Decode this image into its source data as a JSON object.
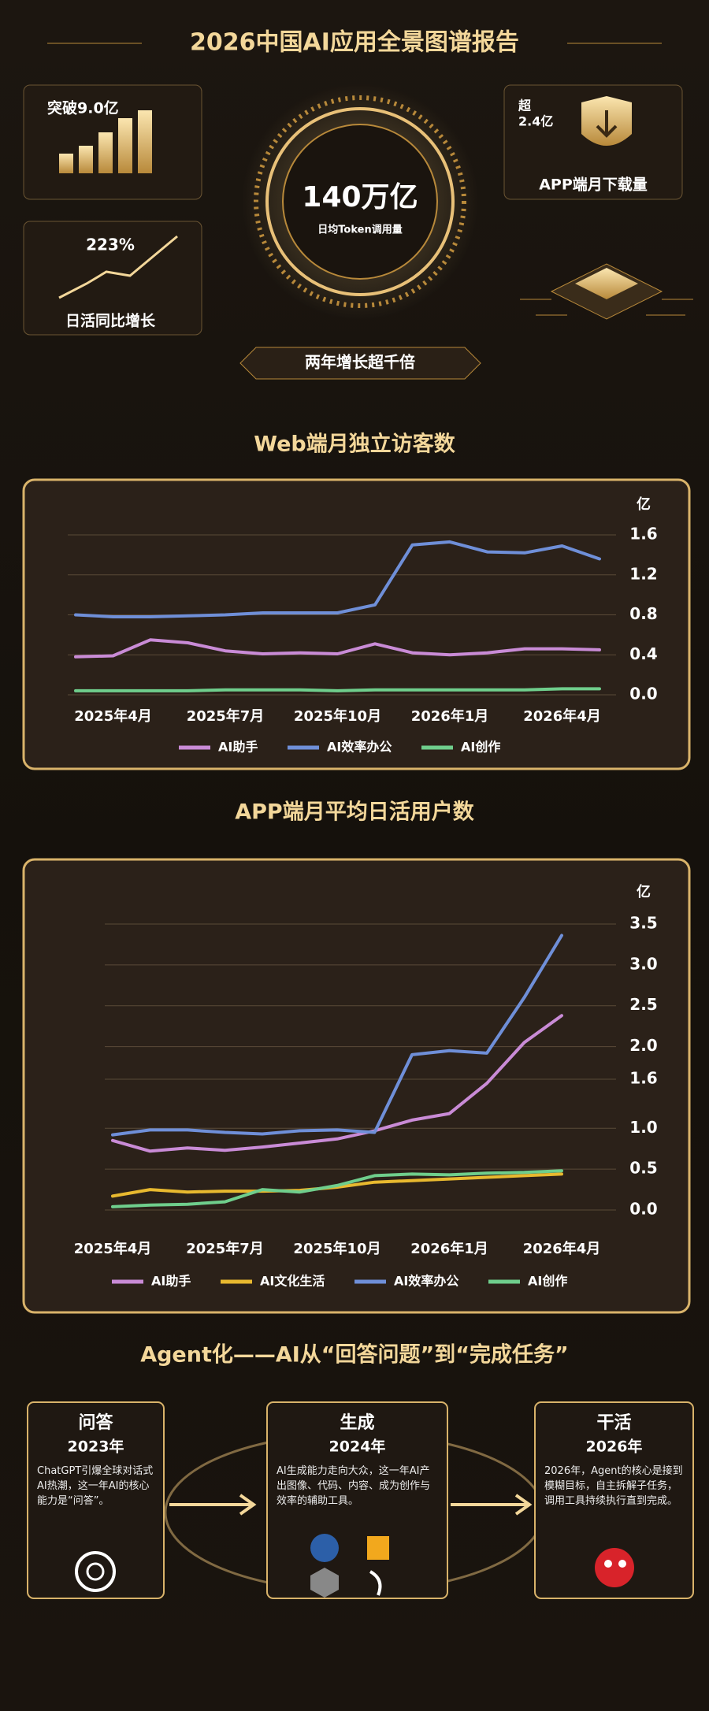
{
  "header": {
    "title": "2026中国AI应用全景图谱报告"
  },
  "stats": {
    "web_users": "突破9.0亿",
    "app_downloads_prefix": "超",
    "app_downloads": "2.4亿",
    "app_downloads_label": "APP端月下载量",
    "token": "140万亿",
    "token_label": "日均Token调用量",
    "dau_growth": "223%",
    "dau_growth_label": "日活同比增长",
    "growth_banner": "两年增长超千倍"
  },
  "chart_data": [
    {
      "type": "line",
      "title": "Web端月独立访客数",
      "y_label": "亿",
      "categories": [
        null,
        "2025年4月",
        null,
        null,
        "2025年7月",
        null,
        null,
        "2025年10月",
        null,
        null,
        "2026年1月",
        null,
        null,
        "2026年4月",
        null
      ],
      "ylim": [
        0,
        1.6
      ],
      "yticks": [
        {
          "value": 0,
          "label": "0.0"
        },
        0.4,
        0.8,
        1.2,
        1.6
      ],
      "grid": true,
      "series": [
        {
          "name": "AI助手",
          "color": "#c98bd6",
          "values": [
            0.38,
            0.39,
            0.55,
            0.52,
            0.44,
            0.41,
            0.42,
            0.41,
            0.51,
            0.42,
            0.4,
            0.42,
            0.46,
            0.46,
            0.45
          ]
        },
        {
          "name": "AI效率办公",
          "color": "#6f8fd8",
          "values": [
            0.8,
            0.78,
            0.78,
            0.79,
            0.8,
            0.82,
            0.82,
            0.82,
            0.9,
            1.5,
            1.53,
            1.43,
            1.42,
            1.49,
            1.36
          ]
        },
        {
          "name": "AI创作",
          "color": "#6fce8c",
          "values": [
            0.04,
            0.04,
            0.04,
            0.04,
            0.05,
            0.05,
            0.05,
            0.04,
            0.05,
            0.05,
            0.05,
            0.05,
            0.05,
            0.06,
            0.06
          ]
        }
      ]
    },
    {
      "type": "line",
      "title": "APP端月平均日活用户数",
      "y_label": "亿",
      "categories": [
        "2025年4月",
        null,
        null,
        "2025年7月",
        null,
        null,
        "2025年10月",
        null,
        null,
        "2026年1月",
        null,
        null,
        "2026年4月"
      ],
      "ylim": [
        0,
        3.5
      ],
      "yticks": [
        {
          "value": 0,
          "label": "0.0"
        },
        0.5,
        {
          "value": 1,
          "label": "1.0"
        },
        1.6,
        {
          "value": 2,
          "label": "2.0"
        },
        2.5,
        {
          "value": 3,
          "label": "3.0"
        },
        3.5
      ],
      "grid": true,
      "series": [
        {
          "name": "AI助手",
          "color": "#c98bd6",
          "values": [
            0.85,
            0.72,
            0.76,
            0.73,
            0.77,
            0.82,
            0.87,
            0.97,
            1.1,
            1.18,
            1.55,
            2.05,
            2.38
          ]
        },
        {
          "name": "AI文化生活",
          "color": "#e8b92f",
          "values": [
            0.17,
            0.25,
            0.22,
            0.23,
            0.23,
            0.24,
            0.28,
            0.34,
            0.36,
            0.38,
            0.4,
            0.42,
            0.44
          ]
        },
        {
          "name": "AI效率办公",
          "color": "#6f8fd8",
          "values": [
            0.92,
            0.98,
            0.98,
            0.95,
            0.93,
            0.97,
            0.98,
            0.95,
            1.9,
            1.95,
            1.92,
            2.6,
            3.36
          ]
        },
        {
          "name": "AI创作",
          "color": "#6fce8c",
          "values": [
            0.04,
            0.06,
            0.07,
            0.1,
            0.25,
            0.22,
            0.3,
            0.42,
            0.44,
            0.43,
            0.45,
            0.46,
            0.48
          ]
        }
      ]
    }
  ],
  "agent": {
    "title": "Agent化——AI从“回答问题”到“完成任务”",
    "stages": [
      {
        "title": "问答",
        "year": "2023年",
        "text": "ChatGPT引爆全球对话式AI热潮，这一年AI的核心能力是“问答”。"
      },
      {
        "title": "生成",
        "year": "2024年",
        "text": "AI生成能力走向大众，这一年AI产出图像、代码、内容、成为创作与效率的辅助工具。"
      },
      {
        "title": "干活",
        "year": "2026年",
        "text": "2026年，Agent的核心是接到模糊目标，自主拆解子任务，调用工具持续执行直到完成。"
      }
    ]
  }
}
